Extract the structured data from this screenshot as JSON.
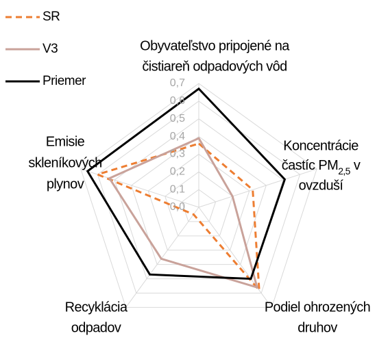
{
  "chart_data": {
    "type": "radar",
    "categories": [
      [
        "Obyvateľstvo pripojené na",
        "čistiareň odpadových vôd"
      ],
      [
        "Koncentrácie",
        [
          "častíc PM",
          "2,5",
          " v"
        ],
        "ovzduší"
      ],
      [
        "Podiel ohrozených",
        "druhov"
      ],
      [
        "Recyklácia",
        "odpadov"
      ],
      [
        "Emisie",
        "skleníkových",
        "plynov"
      ]
    ],
    "series": [
      {
        "name": "SR",
        "color": "#ed7d31",
        "dash": true,
        "values": [
          0.36,
          0.32,
          0.58,
          0.05,
          0.6
        ]
      },
      {
        "name": "V3",
        "color": "#c9a29a",
        "dash": false,
        "values": [
          0.39,
          0.2,
          0.56,
          0.36,
          0.53
        ]
      },
      {
        "name": "Priemer",
        "color": "#000000",
        "dash": false,
        "values": [
          0.67,
          0.51,
          0.5,
          0.47,
          0.66
        ]
      }
    ],
    "ylim": [
      0,
      0.7
    ],
    "yticks": [
      {
        "value": 0,
        "label": "0,0"
      },
      {
        "value": 0.1,
        "label": "0,1"
      },
      {
        "value": 0.2,
        "label": "0,2"
      },
      {
        "value": 0.3,
        "label": "0,3"
      },
      {
        "value": 0.4,
        "label": "0,4"
      },
      {
        "value": 0.5,
        "label": "0,5"
      },
      {
        "value": 0.6,
        "label": "0,6"
      },
      {
        "value": 0.7,
        "label": "0,7"
      }
    ],
    "grid": true
  }
}
